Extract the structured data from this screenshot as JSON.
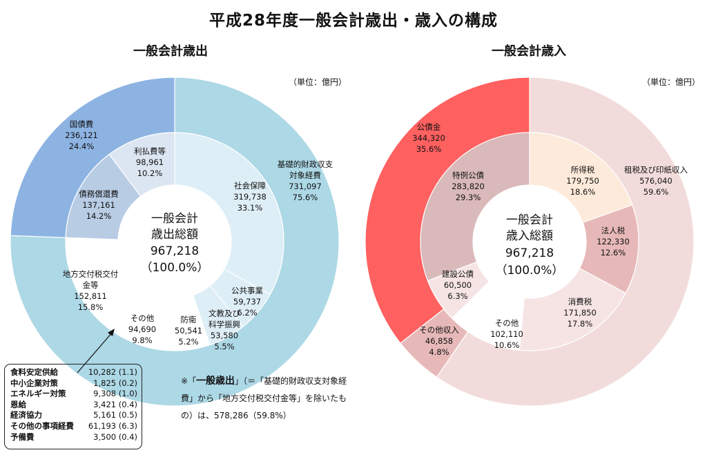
{
  "title": "平成28年度一般会計歳出・歳入の構成",
  "unit_label": "（単位：億円）",
  "chart_data": [
    {
      "type": "pie",
      "title": "一般会計歳出",
      "center": {
        "line1": "一般会計",
        "line2": "歳出総額",
        "value": "967,218",
        "pct": "（100.0%）"
      },
      "outer": [
        {
          "name": "基礎的財政収支対象経費",
          "lines": [
            "基礎的財政収支",
            "対象経費"
          ],
          "value": 731097,
          "value_text": "731,097",
          "pct": "75.6%",
          "color": "#add8e6"
        },
        {
          "name": "国債費",
          "lines": [
            "国債費"
          ],
          "value": 236121,
          "value_text": "236,121",
          "pct": "24.4%",
          "color": "#8db3e2"
        }
      ],
      "inner": [
        {
          "name": "社会保障",
          "lines": [
            "社会保障"
          ],
          "value": 319738,
          "value_text": "319,738",
          "pct": "33.1%",
          "color": "#deeef6"
        },
        {
          "name": "公共事業",
          "lines": [
            "公共事業"
          ],
          "value": 59737,
          "value_text": "59,737",
          "pct": "6.2%",
          "color": "#deeef6"
        },
        {
          "name": "文教及び科学振興",
          "lines": [
            "文教及び",
            "科学振興"
          ],
          "value": 53580,
          "value_text": "53,580",
          "pct": "5.5%",
          "color": "#deeef6"
        },
        {
          "name": "防衛",
          "lines": [
            "防衛"
          ],
          "value": 50541,
          "value_text": "50,541",
          "pct": "5.2%",
          "color": "#ffffff"
        },
        {
          "name": "その他",
          "lines": [
            "その他"
          ],
          "value": 94690,
          "value_text": "94,690",
          "pct": "9.8%",
          "color": "#ffffff"
        },
        {
          "name": "地方交付税交付金等",
          "lines": [
            "地方交付税交付",
            "金等"
          ],
          "value": 152811,
          "value_text": "152,811",
          "pct": "15.8%",
          "color": "#ffffff"
        },
        {
          "name": "債務償還費",
          "lines": [
            "債務償還費"
          ],
          "value": 137161,
          "value_text": "137,161",
          "pct": "14.2%",
          "color": "#b8cce4"
        },
        {
          "name": "利払費等",
          "lines": [
            "利払費等"
          ],
          "value": 98961,
          "value_text": "98,961",
          "pct": "10.2%",
          "color": "#dce6f2"
        }
      ]
    },
    {
      "type": "pie",
      "title": "一般会計歳入",
      "center": {
        "line1": "一般会計",
        "line2": "歳入総額",
        "value": "967,218",
        "pct": "（100.0%）"
      },
      "outer": [
        {
          "name": "租税及び印紙収入",
          "lines": [
            "租税及び印紙収入"
          ],
          "value": 576040,
          "value_text": "576,040",
          "pct": "59.6%",
          "color": "#f2dcdb"
        },
        {
          "name": "その他収入",
          "lines": [
            "その他収入"
          ],
          "value": 46858,
          "value_text": "46,858",
          "pct": "4.8%",
          "color": "#e6b9b8"
        },
        {
          "name": "公債金",
          "lines": [
            "公債金"
          ],
          "value": 344320,
          "value_text": "344,320",
          "pct": "35.6%",
          "color": "#ff6060"
        }
      ],
      "inner": [
        {
          "name": "所得税",
          "lines": [
            "所得税"
          ],
          "value": 179750,
          "value_text": "179,750",
          "pct": "18.6%",
          "color": "#fdeada"
        },
        {
          "name": "法人税",
          "lines": [
            "法人税"
          ],
          "value": 122330,
          "value_text": "122,330",
          "pct": "12.6%",
          "color": "#e6b9b8"
        },
        {
          "name": "消費税",
          "lines": [
            "消費税"
          ],
          "value": 171850,
          "value_text": "171,850",
          "pct": "17.8%",
          "color": "#f6e4e4"
        },
        {
          "name": "その他",
          "lines": [
            "その他"
          ],
          "value": 102110,
          "value_text": "102,110",
          "pct": "10.6%",
          "color": "#ffffff"
        },
        {
          "name": "建設公債",
          "lines": [
            "建設公債"
          ],
          "value": 60500,
          "value_text": "60,500",
          "pct": "6.3%",
          "color": "#f6e4e4"
        },
        {
          "name": "特例公債",
          "lines": [
            "特例公債"
          ],
          "value": 283820,
          "value_text": "283,820",
          "pct": "29.3%",
          "color": "#d9b9b9"
        }
      ]
    }
  ],
  "note": {
    "prefix": "※「",
    "bold": "一般歳出",
    "body": "」（＝「基礎的財政収支対象経費」から「地方交付税交付金等」を除いたもの）",
    "is": "は、",
    "value": "578,286（59.8%）"
  },
  "breakdown": {
    "items": [
      {
        "name": "食料安定供給",
        "value": "10,282 (1.1)"
      },
      {
        "name": "中小企業対策",
        "value": "1,825 (0.2)"
      },
      {
        "name": "エネルギー対策",
        "value": "9,308 (1.0)"
      },
      {
        "name": "恩給",
        "value": "3,421 (0.4)"
      },
      {
        "name": "経済協力",
        "value": "5,161 (0.5)"
      },
      {
        "name": "その他の事項経費",
        "value": "61,193 (6.3)"
      },
      {
        "name": "予備費",
        "value": "3,500 (0.4)"
      }
    ]
  }
}
